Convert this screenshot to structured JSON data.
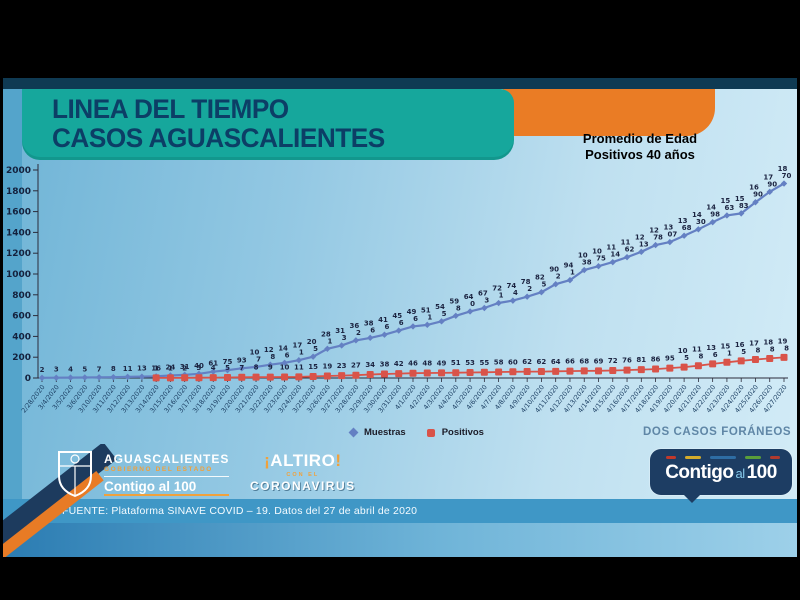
{
  "banner": {
    "title_line1": "LINEA DEL TIEMPO",
    "title_line2": "CASOS AGUASCALIENTES"
  },
  "annotation": {
    "line1": "Promedio de Edad",
    "line2": "Positivos 40 años"
  },
  "legend": {
    "muestras": "Muestras",
    "positivos": "Positivos"
  },
  "note_right": "DOS CASOS FORÁNEOS",
  "footer": {
    "source": "FUENTE: Plataforma SINAVE COVID – 19. Datos del 27 de abril de 2020",
    "gov_logo": {
      "line1": "AGUASCALIENTES",
      "line2": "GOBIERNO DEL ESTADO",
      "line3": "Contigo al 100"
    },
    "altiro_logo": {
      "excl_open": "¡",
      "name": "ALTIRO",
      "excl_close": "!",
      "mid": "CON EL",
      "bottom": "CORONAVIRUS"
    },
    "badge": {
      "word1": "Contigo",
      "word2": "al",
      "word3": "100",
      "dash_colors": [
        "#c0392b",
        "#d4ac2b",
        "#2e6da4",
        "#5a9e3a",
        "#b03a2e"
      ],
      "dash_widths": [
        10,
        16,
        26,
        16,
        10
      ]
    }
  },
  "colors": {
    "banner_teal": "#16a79c",
    "banner_orange": "#ea7c25",
    "title_navy": "#0c3e66",
    "muestras_blue": "#6480c3",
    "positivos_red": "#d95349",
    "top_strip": "#0f3a53",
    "badge_navy": "#1d3d63"
  },
  "chart_data": {
    "type": "line",
    "title": "Linea del tiempo casos Aguascalientes",
    "xlabel": "",
    "ylabel": "",
    "ylim": [
      0,
      2000
    ],
    "ytick_step": 200,
    "grid": false,
    "legend_position": "bottom",
    "dates": [
      "2/28/2020",
      "3/4/2020",
      "3/5/2020",
      "3/6/2020",
      "3/10/2020",
      "3/11/2020",
      "3/12/2020",
      "3/13/2020",
      "3/14/2020",
      "3/15/2020",
      "3/16/2020",
      "3/17/2020",
      "3/18/2020",
      "3/19/2020",
      "3/20/2020",
      "3/21/2020",
      "3/22/2020",
      "3/23/2020",
      "3/24/2020",
      "3/25/2020",
      "3/26/2020",
      "3/27/2020",
      "3/28/2020",
      "3/29/2020",
      "3/30/2020",
      "3/31/2020",
      "4/1/2020",
      "4/2/2020",
      "4/3/2020",
      "4/4/2020",
      "4/5/2020",
      "4/6/2020",
      "4/7/2020",
      "4/8/2020",
      "4/9/2020",
      "4/10/2020",
      "4/11/2020",
      "4/12/2020",
      "4/13/2020",
      "4/14/2020",
      "4/15/2020",
      "4/16/2020",
      "4/17/2020",
      "4/18/2020",
      "4/19/2020",
      "4/20/2020",
      "4/21/2020",
      "4/22/2020",
      "4/23/2020",
      "4/24/2020",
      "4/25/2020",
      "4/26/2020",
      "4/27/2020"
    ],
    "series": [
      {
        "name": "Muestras",
        "color": "#6480c3",
        "marker": "diamond",
        "values": [
          2,
          3,
          4,
          5,
          7,
          8,
          11,
          13,
          16,
          24,
          31,
          40,
          61,
          75,
          93,
          107,
          128,
          146,
          171,
          205,
          281,
          313,
          362,
          386,
          416,
          456,
          496,
          511,
          545,
          598,
          640,
          673,
          721,
          744,
          782,
          825,
          902,
          941,
          1038,
          1075,
          1114,
          1162,
          1213,
          1278,
          1307,
          1368,
          1430,
          1498,
          1563,
          1583,
          1690,
          1790,
          1870
        ]
      },
      {
        "name": "Positivos",
        "color": "#d95349",
        "marker": "square",
        "values": [
          null,
          null,
          null,
          null,
          null,
          null,
          null,
          null,
          1,
          1,
          2,
          3,
          4,
          5,
          7,
          8,
          9,
          10,
          11,
          15,
          19,
          23,
          27,
          34,
          38,
          42,
          46,
          48,
          49,
          51,
          53,
          55,
          58,
          60,
          62,
          62,
          64,
          66,
          68,
          69,
          72,
          76,
          81,
          86,
          95,
          105,
          118,
          136,
          151,
          165,
          178,
          188,
          198
        ]
      }
    ]
  }
}
